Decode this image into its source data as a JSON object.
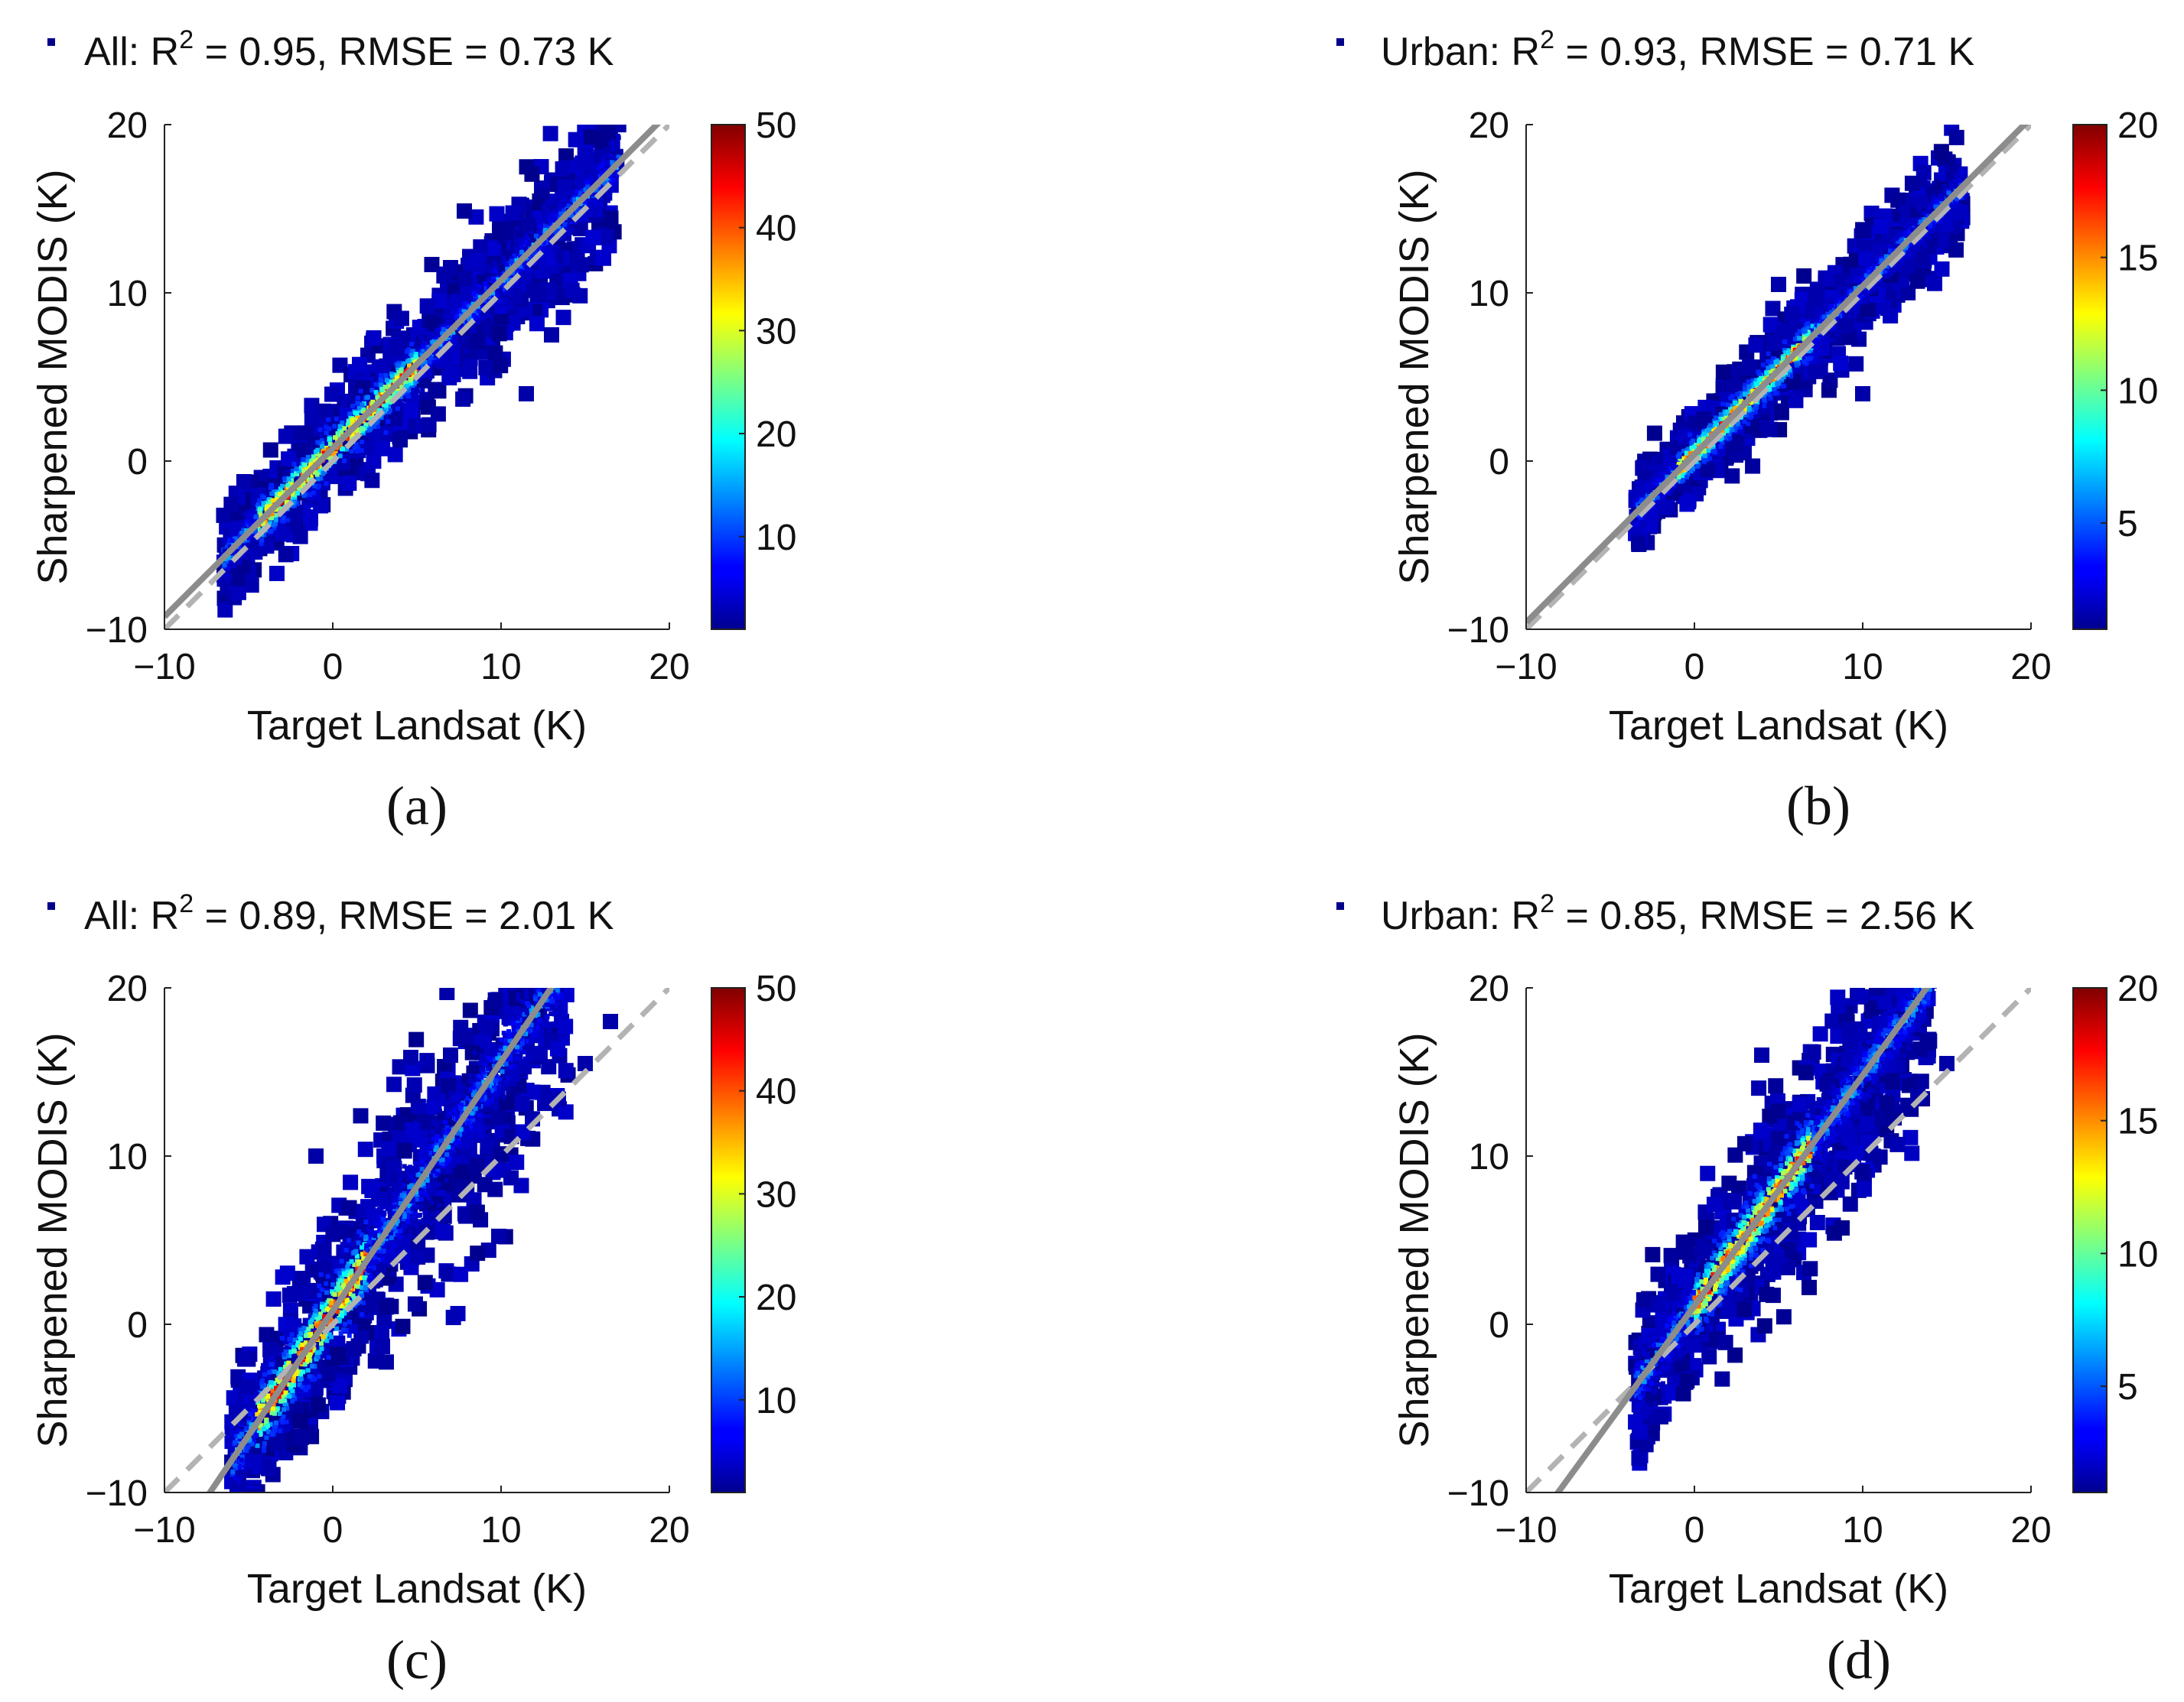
{
  "figure": {
    "y_label": "Sharpened MODIS (K)",
    "x_label": "Target Landsat (K)"
  },
  "chart_data": [
    {
      "panel": "a",
      "type": "scatter",
      "subplot_label": "(a)",
      "title_prefix": "All: R",
      "title_sup": "2",
      "title_suffix": " = 0.95, RMSE = 0.73 K",
      "xlabel": "Target Landsat (K)",
      "ylabel": "Sharpened MODIS (K)",
      "xlim": [
        -10,
        20
      ],
      "ylim": [
        -10,
        20
      ],
      "xticks": [
        -10,
        0,
        10,
        20
      ],
      "yticks": [
        -10,
        0,
        10,
        20
      ],
      "x_tick_labels": [
        "−10",
        "0",
        "10",
        "20"
      ],
      "y_tick_labels": [
        "−10",
        "0",
        "10",
        "20"
      ],
      "colorbar": {
        "min": 1,
        "max": 50,
        "ticks": [
          10,
          20,
          30,
          40,
          50
        ],
        "tick_labels": [
          "10",
          "20",
          "30",
          "40",
          "50"
        ]
      },
      "fit_line": {
        "slope": 1.0,
        "intercept": 0.75
      },
      "one_to_one_line": {
        "slope": 1.0,
        "intercept": 0
      },
      "density": {
        "x_range": [
          -6.5,
          17
        ],
        "spread": 2.0,
        "spread_growth": 0.03,
        "hot_x_range": [
          -4.5,
          5
        ],
        "peak": 50,
        "outliers": [
          [
            11.5,
            4
          ],
          [
            13,
            7.5
          ],
          [
            7,
            11.5
          ]
        ]
      }
    },
    {
      "panel": "b",
      "type": "scatter",
      "subplot_label": "(b)",
      "title_prefix": "Urban: R",
      "title_sup": "2",
      "title_suffix": " = 0.93, RMSE = 0.71 K",
      "xlabel": "Target Landsat (K)",
      "ylabel": "Sharpened MODIS (K)",
      "xlim": [
        -10,
        20
      ],
      "ylim": [
        -10,
        20
      ],
      "xticks": [
        -10,
        0,
        10,
        20
      ],
      "yticks": [
        -10,
        0,
        10,
        20
      ],
      "x_tick_labels": [
        "−10",
        "0",
        "10",
        "20"
      ],
      "y_tick_labels": [
        "−10",
        "0",
        "10",
        "20"
      ],
      "colorbar": {
        "min": 1,
        "max": 20,
        "ticks": [
          5,
          10,
          15,
          20
        ],
        "tick_labels": [
          "5",
          "10",
          "15",
          "20"
        ]
      },
      "fit_line": {
        "slope": 1.0,
        "intercept": 0.4
      },
      "one_to_one_line": {
        "slope": 1.0,
        "intercept": 0
      },
      "density": {
        "x_range": [
          -3.5,
          16
        ],
        "spread": 1.6,
        "spread_growth": 0.03,
        "hot_x_range": [
          -1,
          7
        ],
        "peak": 20,
        "outliers": [
          [
            10,
            4
          ],
          [
            9,
            8
          ],
          [
            5,
            10.5
          ]
        ]
      }
    },
    {
      "panel": "c",
      "type": "scatter",
      "subplot_label": "(c)",
      "title_prefix": "All: R",
      "title_sup": "2",
      "title_suffix": " = 0.89, RMSE = 2.01 K",
      "xlabel": "Target Landsat (K)",
      "ylabel": "Sharpened MODIS (K)",
      "xlim": [
        -10,
        20
      ],
      "ylim": [
        -10,
        20
      ],
      "xticks": [
        -10,
        0,
        10,
        20
      ],
      "yticks": [
        -10,
        0,
        10,
        20
      ],
      "x_tick_labels": [
        "−10",
        "0",
        "10",
        "20"
      ],
      "y_tick_labels": [
        "−10",
        "0",
        "10",
        "20"
      ],
      "colorbar": {
        "min": 1,
        "max": 50,
        "ticks": [
          10,
          20,
          30,
          40,
          50
        ],
        "tick_labels": [
          "10",
          "20",
          "30",
          "40",
          "50"
        ]
      },
      "fit_line": {
        "slope": 1.48,
        "intercept": 0.8
      },
      "one_to_one_line": {
        "slope": 1.0,
        "intercept": 0
      },
      "density": {
        "x_range": [
          -6,
          14
        ],
        "spread": 3.2,
        "spread_growth": 0.05,
        "hot_x_range": [
          -4.5,
          2
        ],
        "peak": 50,
        "outliers": [
          [
            16.5,
            18
          ],
          [
            15,
            15.5
          ],
          [
            -1,
            10
          ],
          [
            7,
            16
          ]
        ]
      }
    },
    {
      "panel": "d",
      "type": "scatter",
      "subplot_label": "(d)",
      "title_prefix": "Urban: R",
      "title_sup": "2",
      "title_suffix": " = 0.85, RMSE = 2.56 K",
      "xlabel": "Target Landsat (K)",
      "ylabel": "Sharpened MODIS (K)",
      "xlim": [
        -10,
        20
      ],
      "ylim": [
        -10,
        20
      ],
      "xticks": [
        -10,
        0,
        10,
        20
      ],
      "yticks": [
        -10,
        0,
        10,
        20
      ],
      "x_tick_labels": [
        "−10",
        "0",
        "10",
        "20"
      ],
      "y_tick_labels": [
        "−10",
        "0",
        "10",
        "20"
      ],
      "colorbar": {
        "min": 1,
        "max": 20,
        "ticks": [
          5,
          10,
          15,
          20
        ],
        "tick_labels": [
          "5",
          "10",
          "15",
          "20"
        ]
      },
      "fit_line": {
        "slope": 1.37,
        "intercept": 1.1
      },
      "one_to_one_line": {
        "slope": 1.0,
        "intercept": 0
      },
      "density": {
        "x_range": [
          -3.5,
          14
        ],
        "spread": 2.8,
        "spread_growth": 0.05,
        "hot_x_range": [
          0,
          7
        ],
        "peak": 20,
        "outliers": [
          [
            15,
            15.5
          ],
          [
            4,
            16
          ],
          [
            -2,
            -5.5
          ]
        ]
      }
    }
  ]
}
